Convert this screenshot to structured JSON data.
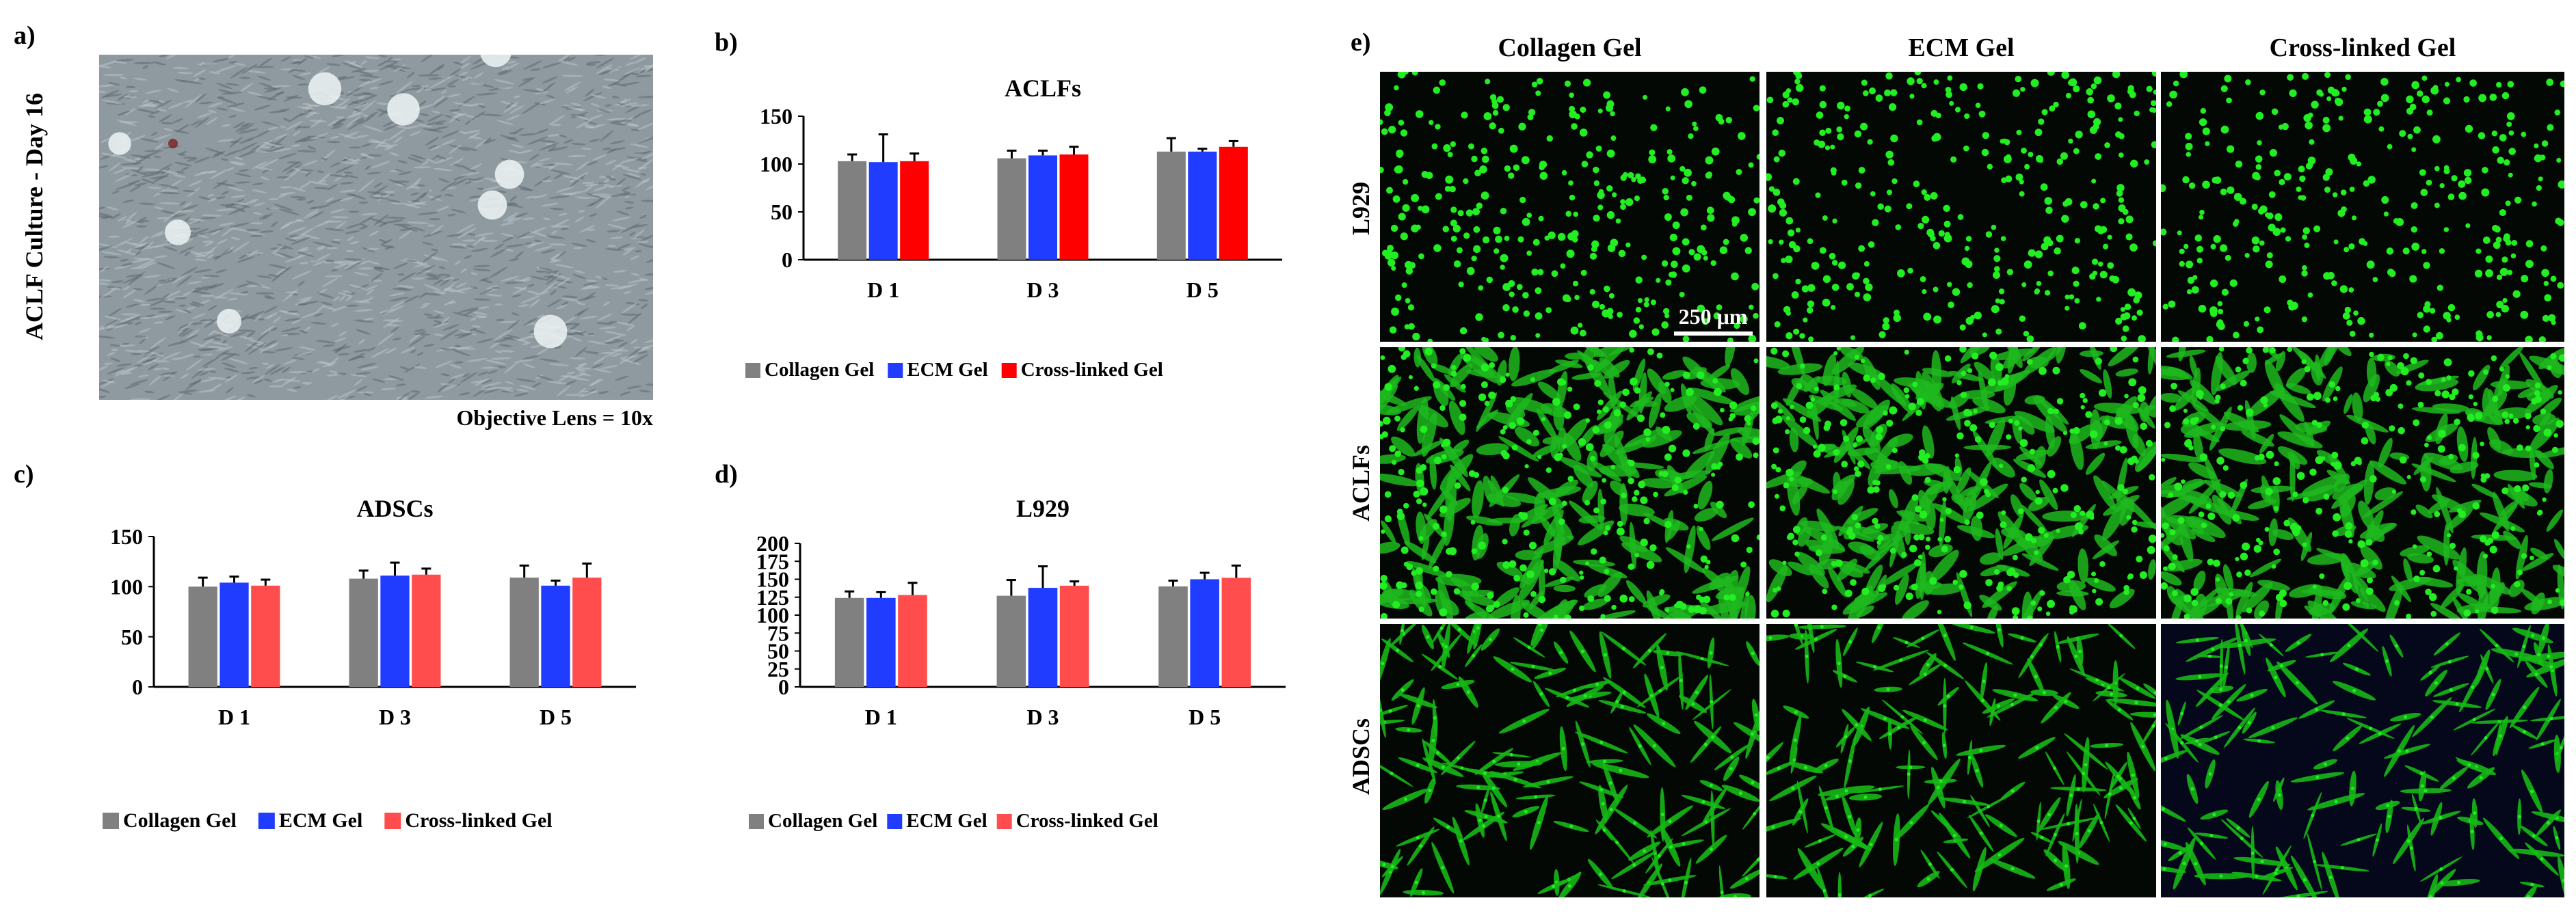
{
  "panels": {
    "a": {
      "letter": "a)",
      "side_label": "ACLF Culture - Day 16",
      "caption": "Objective Lens = 10x"
    },
    "b": {
      "letter": "b)"
    },
    "c": {
      "letter": "c)"
    },
    "d": {
      "letter": "d)"
    },
    "e": {
      "letter": "e)",
      "columns": [
        "Collagen Gel",
        "ECM Gel",
        "Cross-linked Gel"
      ],
      "rows": [
        "L929",
        "ACLFs",
        "ADSCs"
      ],
      "scale_bar": "250 μm"
    }
  },
  "colors": {
    "collagen": "#808080",
    "ecm": "#1f3cff",
    "crosslinked_b": "#ff0000",
    "crosslinked_cd": "#ff4d4d",
    "cells": "#22ee22",
    "micro_bg": "#040804",
    "phase_bg": "#8f9aa0"
  },
  "chart_data": [
    {
      "id": "b",
      "type": "bar",
      "title": "ACLFs",
      "categories": [
        "D 1",
        "D 3",
        "D 5"
      ],
      "ylim": [
        0,
        150
      ],
      "yticks": [
        0,
        50,
        100,
        150
      ],
      "legend_position": "bottom",
      "series": [
        {
          "name": "Collagen Gel",
          "color_key": "collagen",
          "values": [
            103,
            106,
            113
          ],
          "errors": [
            7,
            8,
            14
          ]
        },
        {
          "name": "ECM Gel",
          "color_key": "ecm",
          "values": [
            102,
            109,
            113
          ],
          "errors": [
            29,
            5,
            3
          ]
        },
        {
          "name": "Cross-linked Gel",
          "color_key": "crosslinked_b",
          "values": [
            103,
            110,
            118
          ],
          "errors": [
            8,
            8,
            6
          ]
        }
      ]
    },
    {
      "id": "c",
      "type": "bar",
      "title": "ADSCs",
      "categories": [
        "D 1",
        "D 3",
        "D 5"
      ],
      "ylim": [
        0,
        150
      ],
      "yticks": [
        0,
        50,
        100,
        150
      ],
      "legend_position": "bottom",
      "series": [
        {
          "name": "Collagen Gel",
          "color_key": "collagen",
          "values": [
            100,
            108,
            109
          ],
          "errors": [
            9,
            8,
            12
          ]
        },
        {
          "name": "ECM Gel",
          "color_key": "ecm",
          "values": [
            104,
            111,
            101
          ],
          "errors": [
            6,
            13,
            5
          ]
        },
        {
          "name": "Cross-linked Gel",
          "color_key": "crosslinked_cd",
          "values": [
            101,
            112,
            109
          ],
          "errors": [
            6,
            6,
            14
          ]
        }
      ]
    },
    {
      "id": "d",
      "type": "bar",
      "title": "L929",
      "categories": [
        "D 1",
        "D 3",
        "D 5"
      ],
      "ylim": [
        0,
        200
      ],
      "yticks": [
        0,
        25,
        50,
        75,
        100,
        125,
        150,
        175,
        200
      ],
      "legend_position": "bottom",
      "series": [
        {
          "name": "Collagen Gel",
          "color_key": "collagen",
          "values": [
            124,
            127,
            140
          ],
          "errors": [
            9,
            22,
            8
          ]
        },
        {
          "name": "ECM Gel",
          "color_key": "ecm",
          "values": [
            124,
            138,
            150
          ],
          "errors": [
            8,
            30,
            9
          ]
        },
        {
          "name": "Cross-linked Gel",
          "color_key": "crosslinked_cd",
          "values": [
            128,
            141,
            152
          ],
          "errors": [
            17,
            6,
            17
          ]
        }
      ]
    }
  ]
}
